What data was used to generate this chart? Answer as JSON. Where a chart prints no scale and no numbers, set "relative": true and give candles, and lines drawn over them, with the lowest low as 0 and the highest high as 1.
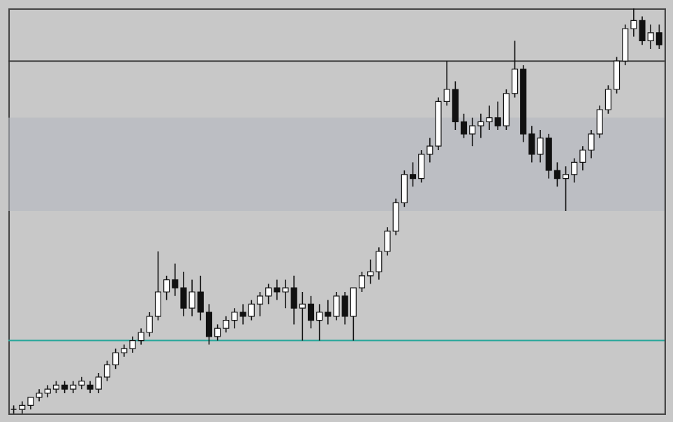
{
  "chart_data": {
    "type": "candlestick",
    "relative": true,
    "tick_labels": false,
    "grid": false,
    "categories": [
      null,
      null,
      null,
      null,
      null,
      null,
      null,
      null,
      null,
      null,
      null,
      null,
      null,
      null,
      null,
      null,
      null,
      null,
      null,
      null,
      null,
      null,
      null,
      null,
      null,
      null,
      null,
      null,
      null,
      null,
      null,
      null,
      null,
      null,
      null,
      null,
      null,
      null,
      null,
      null,
      null,
      null,
      null,
      null,
      null,
      null,
      null,
      null,
      null,
      null,
      null,
      null,
      null,
      null,
      null,
      null,
      null,
      null,
      null,
      null,
      null,
      null,
      null,
      null,
      null,
      null,
      null,
      null,
      null,
      null,
      null,
      null,
      null,
      null,
      null,
      null,
      null
    ],
    "ohlc": [
      [
        0.01,
        0.02,
        0.0,
        0.01
      ],
      [
        0.01,
        0.03,
        0.0,
        0.02
      ],
      [
        0.02,
        0.04,
        0.01,
        0.04
      ],
      [
        0.04,
        0.06,
        0.03,
        0.05
      ],
      [
        0.05,
        0.07,
        0.04,
        0.06
      ],
      [
        0.06,
        0.08,
        0.05,
        0.07
      ],
      [
        0.07,
        0.08,
        0.05,
        0.06
      ],
      [
        0.06,
        0.08,
        0.05,
        0.07
      ],
      [
        0.07,
        0.09,
        0.06,
        0.08
      ],
      [
        0.07,
        0.08,
        0.05,
        0.06
      ],
      [
        0.06,
        0.1,
        0.05,
        0.09
      ],
      [
        0.09,
        0.13,
        0.08,
        0.12
      ],
      [
        0.12,
        0.16,
        0.11,
        0.15
      ],
      [
        0.15,
        0.17,
        0.14,
        0.16
      ],
      [
        0.16,
        0.19,
        0.15,
        0.18
      ],
      [
        0.18,
        0.21,
        0.17,
        0.2
      ],
      [
        0.2,
        0.25,
        0.19,
        0.24
      ],
      [
        0.24,
        0.4,
        0.23,
        0.3
      ],
      [
        0.3,
        0.34,
        0.28,
        0.33
      ],
      [
        0.33,
        0.37,
        0.29,
        0.31
      ],
      [
        0.31,
        0.35,
        0.24,
        0.26
      ],
      [
        0.26,
        0.33,
        0.24,
        0.3
      ],
      [
        0.3,
        0.34,
        0.23,
        0.25
      ],
      [
        0.25,
        0.27,
        0.17,
        0.19
      ],
      [
        0.19,
        0.22,
        0.18,
        0.21
      ],
      [
        0.21,
        0.24,
        0.2,
        0.23
      ],
      [
        0.23,
        0.26,
        0.21,
        0.25
      ],
      [
        0.25,
        0.27,
        0.22,
        0.24
      ],
      [
        0.24,
        0.28,
        0.23,
        0.27
      ],
      [
        0.27,
        0.3,
        0.24,
        0.29
      ],
      [
        0.29,
        0.32,
        0.27,
        0.31
      ],
      [
        0.31,
        0.33,
        0.28,
        0.3
      ],
      [
        0.3,
        0.33,
        0.26,
        0.31
      ],
      [
        0.31,
        0.34,
        0.22,
        0.26
      ],
      [
        0.26,
        0.3,
        0.18,
        0.27
      ],
      [
        0.27,
        0.29,
        0.21,
        0.23
      ],
      [
        0.23,
        0.27,
        0.18,
        0.25
      ],
      [
        0.25,
        0.28,
        0.22,
        0.24
      ],
      [
        0.24,
        0.3,
        0.23,
        0.29
      ],
      [
        0.29,
        0.3,
        0.22,
        0.24
      ],
      [
        0.24,
        0.31,
        0.18,
        0.31
      ],
      [
        0.31,
        0.35,
        0.3,
        0.34
      ],
      [
        0.34,
        0.38,
        0.32,
        0.35
      ],
      [
        0.35,
        0.41,
        0.33,
        0.4
      ],
      [
        0.4,
        0.46,
        0.39,
        0.45
      ],
      [
        0.45,
        0.53,
        0.44,
        0.52
      ],
      [
        0.52,
        0.6,
        0.51,
        0.59
      ],
      [
        0.59,
        0.62,
        0.56,
        0.58
      ],
      [
        0.58,
        0.65,
        0.57,
        0.64
      ],
      [
        0.64,
        0.68,
        0.62,
        0.66
      ],
      [
        0.66,
        0.78,
        0.65,
        0.77
      ],
      [
        0.77,
        0.87,
        0.76,
        0.8
      ],
      [
        0.8,
        0.82,
        0.7,
        0.72
      ],
      [
        0.72,
        0.74,
        0.68,
        0.69
      ],
      [
        0.69,
        0.73,
        0.66,
        0.71
      ],
      [
        0.71,
        0.74,
        0.68,
        0.72
      ],
      [
        0.72,
        0.76,
        0.7,
        0.73
      ],
      [
        0.73,
        0.77,
        0.7,
        0.71
      ],
      [
        0.71,
        0.8,
        0.7,
        0.79
      ],
      [
        0.79,
        0.92,
        0.78,
        0.85
      ],
      [
        0.85,
        0.86,
        0.67,
        0.69
      ],
      [
        0.69,
        0.71,
        0.62,
        0.64
      ],
      [
        0.64,
        0.7,
        0.62,
        0.68
      ],
      [
        0.68,
        0.69,
        0.58,
        0.6
      ],
      [
        0.6,
        0.62,
        0.56,
        0.58
      ],
      [
        0.58,
        0.61,
        0.5,
        0.59
      ],
      [
        0.59,
        0.63,
        0.57,
        0.62
      ],
      [
        0.62,
        0.66,
        0.6,
        0.65
      ],
      [
        0.65,
        0.7,
        0.63,
        0.69
      ],
      [
        0.69,
        0.76,
        0.68,
        0.75
      ],
      [
        0.75,
        0.81,
        0.74,
        0.8
      ],
      [
        0.8,
        0.88,
        0.79,
        0.87
      ],
      [
        0.87,
        0.96,
        0.86,
        0.95
      ],
      [
        0.95,
        1.0,
        0.93,
        0.97
      ],
      [
        0.97,
        0.98,
        0.91,
        0.92
      ],
      [
        0.92,
        0.96,
        0.9,
        0.94
      ],
      [
        0.94,
        0.96,
        0.9,
        0.91
      ]
    ],
    "ref_lines": [
      {
        "axis": "y",
        "value": 0.87,
        "color": "#333333"
      },
      {
        "axis": "y",
        "value": 0.18,
        "color": "#26a69a"
      }
    ],
    "bands": [
      {
        "axis": "y",
        "from": 0.5,
        "to": 0.73,
        "color": "#b4b8c0"
      }
    ]
  }
}
